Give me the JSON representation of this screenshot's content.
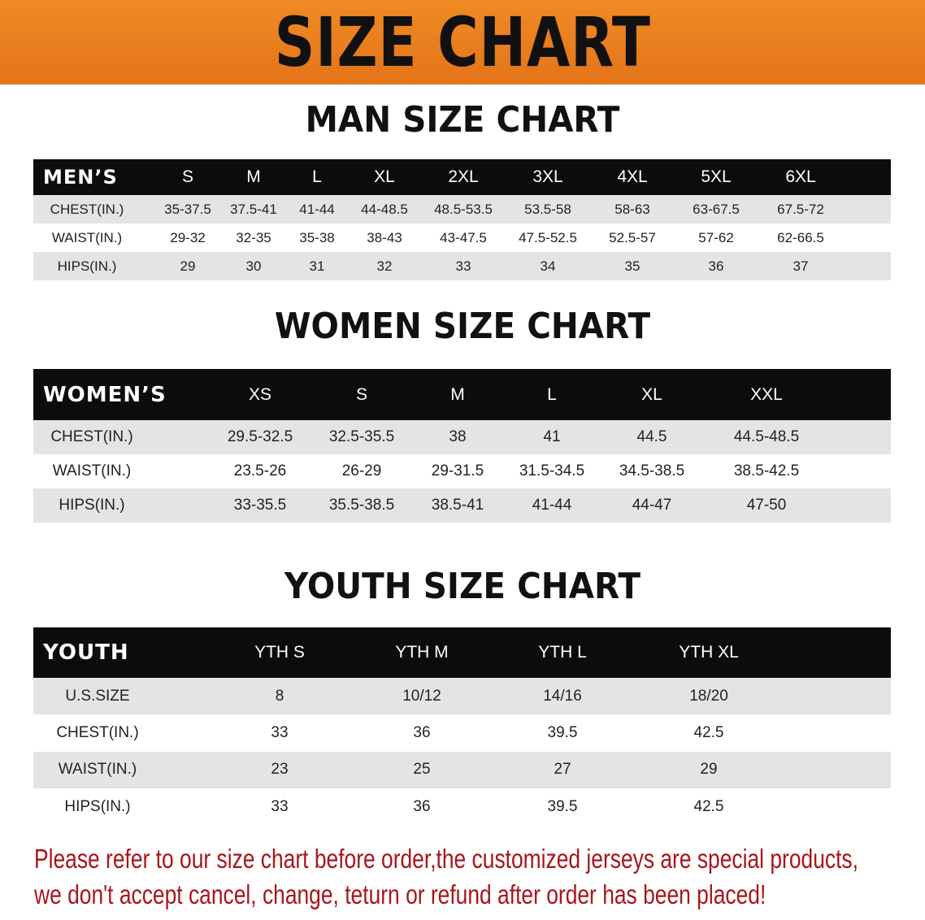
{
  "title": "SIZE CHART",
  "colors": {
    "banner": "#e97d1f",
    "header_bg": "#0c0c0c",
    "stripe": "#e4e4e4",
    "notice": "#a8161c"
  },
  "men": {
    "heading": "MAN SIZE CHART",
    "label": "MEN’S",
    "sizes": [
      "S",
      "M",
      "L",
      "XL",
      "2XL",
      "3XL",
      "4XL",
      "5XL",
      "6XL"
    ],
    "rows": [
      {
        "label": "CHEST(IN.)",
        "values": [
          "35-37.5",
          "37.5-41",
          "41-44",
          "44-48.5",
          "48.5-53.5",
          "53.5-58",
          "58-63",
          "63-67.5",
          "67.5-72"
        ]
      },
      {
        "label": "WAIST(IN.)",
        "values": [
          "29-32",
          "32-35",
          "35-38",
          "38-43",
          "43-47.5",
          "47.5-52.5",
          "52.5-57",
          "57-62",
          "62-66.5"
        ]
      },
      {
        "label": "HIPS(IN.)",
        "values": [
          "29",
          "30",
          "31",
          "32",
          "33",
          "34",
          "35",
          "36",
          "37"
        ]
      }
    ]
  },
  "women": {
    "heading": "WOMEN SIZE CHART",
    "label": "WOMEN’S",
    "sizes": [
      "XS",
      "S",
      "M",
      "L",
      "XL",
      "XXL"
    ],
    "rows": [
      {
        "label": "CHEST(IN.)",
        "values": [
          "29.5-32.5",
          "32.5-35.5",
          "38",
          "41",
          "44.5",
          "44.5-48.5"
        ]
      },
      {
        "label": "WAIST(IN.)",
        "values": [
          "23.5-26",
          "26-29",
          "29-31.5",
          "31.5-34.5",
          "34.5-38.5",
          "38.5-42.5"
        ]
      },
      {
        "label": "HIPS(IN.)",
        "values": [
          "33-35.5",
          "35.5-38.5",
          "38.5-41",
          "41-44",
          "44-47",
          "47-50"
        ]
      }
    ]
  },
  "youth": {
    "heading": "YOUTH SIZE CHART",
    "label": "YOUTH",
    "sizes": [
      "YTH S",
      "YTH M",
      "YTH L",
      "YTH XL"
    ],
    "rows": [
      {
        "label": "U.S.SIZE",
        "values": [
          "8",
          "10/12",
          "14/16",
          "18/20"
        ]
      },
      {
        "label": "CHEST(IN.)",
        "values": [
          "33",
          "36",
          "39.5",
          "42.5"
        ]
      },
      {
        "label": "WAIST(IN.)",
        "values": [
          "23",
          "25",
          "27",
          "29"
        ]
      },
      {
        "label": "HIPS(IN.)",
        "values": [
          "33",
          "36",
          "39.5",
          "42.5"
        ]
      }
    ]
  },
  "notice": [
    "Please refer to our size chart before order,the customized jerseys are special products,",
    "we don't accept cancel, change, teturn or refund after order has been placed!"
  ]
}
